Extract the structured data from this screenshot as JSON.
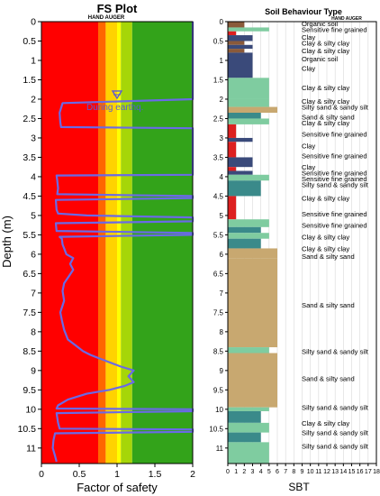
{
  "chart_data": [
    {
      "type": "line",
      "title": "FS Plot",
      "subtitle": "HAND AUGER",
      "xlabel": "Factor of safety",
      "ylabel": "Depth (m)",
      "xlim": [
        0,
        2
      ],
      "ylim": [
        0,
        11.4
      ],
      "x_ticks": [
        "0",
        "0.5",
        "1",
        "1.5",
        "2"
      ],
      "y_ticks": [
        "0",
        "0.5",
        "1",
        "1.5",
        "2",
        "2.5",
        "3",
        "3.5",
        "4",
        "4.5",
        "5",
        "5.5",
        "6",
        "6.5",
        "7",
        "7.5",
        "8",
        "8.5",
        "9",
        "9.5",
        "10",
        "10.5",
        "11"
      ],
      "annotation": "During earthq.",
      "water_table_depth": 2.0,
      "bands": [
        {
          "from": 0,
          "to": 0.75,
          "color": "#ff0000"
        },
        {
          "from": 0.75,
          "to": 0.85,
          "color": "#ff6600"
        },
        {
          "from": 0.85,
          "to": 1.0,
          "color": "#ffd200"
        },
        {
          "from": 1.0,
          "to": 1.05,
          "color": "#ffff00"
        },
        {
          "from": 1.05,
          "to": 1.2,
          "color": "#a6d608"
        },
        {
          "from": 1.2,
          "to": 2.0,
          "color": "#33a31a"
        }
      ],
      "series": [
        {
          "color": "#6a6ae6",
          "points": [
            [
              2.0,
              0
            ],
            [
              2.0,
              2.0
            ],
            [
              0.28,
              2.1
            ],
            [
              0.24,
              2.35
            ],
            [
              0.25,
              2.6
            ],
            [
              0.26,
              2.72
            ],
            [
              2.0,
              2.75
            ],
            [
              2.0,
              3.95
            ],
            [
              0.2,
              3.97
            ],
            [
              0.21,
              4.1
            ],
            [
              0.22,
              4.3
            ],
            [
              0.21,
              4.45
            ],
            [
              2.0,
              4.5
            ],
            [
              2.0,
              4.55
            ],
            [
              0.19,
              4.6
            ],
            [
              0.2,
              4.85
            ],
            [
              0.22,
              4.95
            ],
            [
              0.6,
              5.0
            ],
            [
              2.0,
              5.05
            ],
            [
              2.0,
              5.15
            ],
            [
              0.19,
              5.2
            ],
            [
              0.2,
              5.4
            ],
            [
              2.0,
              5.45
            ],
            [
              2.0,
              5.5
            ],
            [
              0.24,
              5.55
            ],
            [
              0.27,
              5.6
            ],
            [
              0.28,
              5.75
            ],
            [
              0.3,
              5.85
            ],
            [
              0.33,
              6.0
            ],
            [
              0.42,
              6.1
            ],
            [
              0.38,
              6.25
            ],
            [
              0.42,
              6.4
            ],
            [
              0.37,
              6.55
            ],
            [
              0.3,
              6.75
            ],
            [
              0.28,
              6.95
            ],
            [
              0.3,
              7.2
            ],
            [
              0.25,
              7.5
            ],
            [
              0.27,
              7.7
            ],
            [
              0.3,
              7.95
            ],
            [
              0.35,
              8.2
            ],
            [
              0.45,
              8.35
            ],
            [
              0.55,
              8.5
            ],
            [
              0.65,
              8.6
            ],
            [
              0.85,
              8.75
            ],
            [
              1.05,
              8.9
            ],
            [
              1.22,
              9.0
            ],
            [
              1.15,
              9.15
            ],
            [
              1.22,
              9.3
            ],
            [
              1.1,
              9.4
            ],
            [
              0.9,
              9.5
            ],
            [
              0.6,
              9.6
            ],
            [
              0.35,
              9.75
            ],
            [
              0.22,
              9.9
            ],
            [
              0.2,
              9.98
            ],
            [
              2.0,
              10.0
            ],
            [
              2.0,
              10.05
            ],
            [
              0.2,
              10.1
            ],
            [
              0.22,
              10.35
            ],
            [
              0.24,
              10.5
            ],
            [
              2.0,
              10.52
            ],
            [
              2.0,
              10.58
            ],
            [
              0.18,
              10.62
            ],
            [
              0.16,
              10.8
            ],
            [
              0.15,
              11.0
            ],
            [
              0.18,
              11.2
            ],
            [
              0.2,
              11.35
            ]
          ]
        }
      ]
    },
    {
      "type": "bar",
      "title": "Soil Behaviour Type",
      "subtitle": "HAND AUGER",
      "xlabel": "SBT",
      "xlim": [
        0,
        18
      ],
      "ylim": [
        0,
        11.4
      ],
      "x_ticks": [
        "0",
        "1",
        "2",
        "3",
        "4",
        "5",
        "6",
        "7",
        "8",
        "9",
        "10",
        "11",
        "12",
        "13",
        "14",
        "15",
        "16",
        "17",
        "18"
      ],
      "y_ticks": [
        "0",
        "0.5",
        "1",
        "1.5",
        "2",
        "2.5",
        "3",
        "3.5",
        "4",
        "4.5",
        "5",
        "5.5",
        "6",
        "6.5",
        "7",
        "7.5",
        "8",
        "8.5",
        "9",
        "9.5",
        "10",
        "10.5",
        "11"
      ],
      "colors": {
        "sensitive": "#dd2020",
        "organic": "#8a5a3a",
        "clay": "#3a4a7a",
        "clay_silty": "#3a8a8a",
        "silty_sand": "#7fcca0",
        "sand": "#c8a870"
      },
      "layers": [
        {
          "top": 0.0,
          "bottom": 0.15,
          "sbt": 2,
          "class": "organic"
        },
        {
          "top": 0.15,
          "bottom": 0.25,
          "sbt": 5,
          "class": "silty_sand"
        },
        {
          "top": 0.25,
          "bottom": 0.35,
          "sbt": 1,
          "class": "sensitive"
        },
        {
          "top": 0.35,
          "bottom": 0.5,
          "sbt": 3,
          "class": "clay"
        },
        {
          "top": 0.5,
          "bottom": 0.6,
          "sbt": 2,
          "class": "organic"
        },
        {
          "top": 0.6,
          "bottom": 0.7,
          "sbt": 3,
          "class": "clay"
        },
        {
          "top": 0.7,
          "bottom": 0.8,
          "sbt": 2,
          "class": "organic"
        },
        {
          "top": 0.8,
          "bottom": 1.45,
          "sbt": 3,
          "class": "clay"
        },
        {
          "top": 1.45,
          "bottom": 2.0,
          "sbt": 5,
          "class": "silty_sand"
        },
        {
          "top": 2.0,
          "bottom": 2.2,
          "sbt": 5,
          "class": "silty_sand"
        },
        {
          "top": 2.2,
          "bottom": 2.35,
          "sbt": 6,
          "class": "sand"
        },
        {
          "top": 2.35,
          "bottom": 2.5,
          "sbt": 4,
          "class": "clay_silty"
        },
        {
          "top": 2.5,
          "bottom": 2.65,
          "sbt": 5,
          "class": "silty_sand"
        },
        {
          "top": 2.65,
          "bottom": 3.0,
          "sbt": 1,
          "class": "sensitive"
        },
        {
          "top": 3.0,
          "bottom": 3.1,
          "sbt": 3,
          "class": "clay"
        },
        {
          "top": 3.1,
          "bottom": 3.5,
          "sbt": 1,
          "class": "sensitive"
        },
        {
          "top": 3.5,
          "bottom": 3.75,
          "sbt": 3,
          "class": "clay"
        },
        {
          "top": 3.75,
          "bottom": 3.85,
          "sbt": 1,
          "class": "sensitive"
        },
        {
          "top": 3.85,
          "bottom": 3.95,
          "sbt": 3,
          "class": "clay"
        },
        {
          "top": 3.95,
          "bottom": 4.1,
          "sbt": 5,
          "class": "silty_sand"
        },
        {
          "top": 4.1,
          "bottom": 4.5,
          "sbt": 4,
          "class": "clay_silty"
        },
        {
          "top": 4.5,
          "bottom": 5.1,
          "sbt": 1,
          "class": "sensitive"
        },
        {
          "top": 5.1,
          "bottom": 5.3,
          "sbt": 5,
          "class": "silty_sand"
        },
        {
          "top": 5.3,
          "bottom": 5.45,
          "sbt": 4,
          "class": "clay_silty"
        },
        {
          "top": 5.45,
          "bottom": 5.6,
          "sbt": 5,
          "class": "silty_sand"
        },
        {
          "top": 5.6,
          "bottom": 5.85,
          "sbt": 4,
          "class": "clay_silty"
        },
        {
          "top": 5.85,
          "bottom": 6.1,
          "sbt": 6,
          "class": "sand"
        },
        {
          "top": 6.1,
          "bottom": 8.4,
          "sbt": 6,
          "class": "sand"
        },
        {
          "top": 8.4,
          "bottom": 8.55,
          "sbt": 5,
          "class": "silty_sand"
        },
        {
          "top": 8.55,
          "bottom": 9.95,
          "sbt": 6,
          "class": "sand"
        },
        {
          "top": 9.95,
          "bottom": 10.05,
          "sbt": 5,
          "class": "silty_sand"
        },
        {
          "top": 10.05,
          "bottom": 10.35,
          "sbt": 4,
          "class": "clay_silty"
        },
        {
          "top": 10.35,
          "bottom": 10.6,
          "sbt": 5,
          "class": "silty_sand"
        },
        {
          "top": 10.6,
          "bottom": 10.85,
          "sbt": 4,
          "class": "clay_silty"
        },
        {
          "top": 10.85,
          "bottom": 11.4,
          "sbt": 5,
          "class": "silty_sand"
        }
      ],
      "labels": [
        {
          "depth": 0.05,
          "text": "Organic soil"
        },
        {
          "depth": 0.2,
          "text": "Sensitive fine grained"
        },
        {
          "depth": 0.4,
          "text": "Clay"
        },
        {
          "depth": 0.55,
          "text": "Clay & silty clay"
        },
        {
          "depth": 0.75,
          "text": "Clay & silty clay"
        },
        {
          "depth": 0.95,
          "text": "Organic soil"
        },
        {
          "depth": 1.2,
          "text": "Clay"
        },
        {
          "depth": 1.7,
          "text": "Clay & silty clay"
        },
        {
          "depth": 2.05,
          "text": "Clay & silty clay"
        },
        {
          "depth": 2.2,
          "text": "Silty sand & sandy silt"
        },
        {
          "depth": 2.45,
          "text": "Sand & silty sand"
        },
        {
          "depth": 2.6,
          "text": "Clay & silty clay"
        },
        {
          "depth": 2.9,
          "text": "Sensitive fine grained"
        },
        {
          "depth": 3.2,
          "text": "Clay"
        },
        {
          "depth": 3.45,
          "text": "Sensitive fine grained"
        },
        {
          "depth": 3.75,
          "text": "Clay"
        },
        {
          "depth": 3.9,
          "text": "Sensitive fine grained"
        },
        {
          "depth": 4.05,
          "text": "Sensitive fine grained"
        },
        {
          "depth": 4.2,
          "text": "Silty sand & sandy silt"
        },
        {
          "depth": 4.55,
          "text": "Clay & silty clay"
        },
        {
          "depth": 4.95,
          "text": "Sensitive fine grained"
        },
        {
          "depth": 5.25,
          "text": "Sensitive fine grained"
        },
        {
          "depth": 5.55,
          "text": "Clay & silty clay"
        },
        {
          "depth": 5.85,
          "text": "Clay & silty clay"
        },
        {
          "depth": 6.05,
          "text": "Sand & silty sand"
        },
        {
          "depth": 7.3,
          "text": "Sand & silty sand"
        },
        {
          "depth": 8.5,
          "text": "Silty sand & sandy silt"
        },
        {
          "depth": 9.2,
          "text": "Sand & silty sand"
        },
        {
          "depth": 9.95,
          "text": "Silty sand & sandy silt"
        },
        {
          "depth": 10.35,
          "text": "Clay & silty clay"
        },
        {
          "depth": 10.6,
          "text": "Silty sand & sandy silt"
        },
        {
          "depth": 10.95,
          "text": "Silty sand & sandy silt"
        }
      ]
    }
  ]
}
